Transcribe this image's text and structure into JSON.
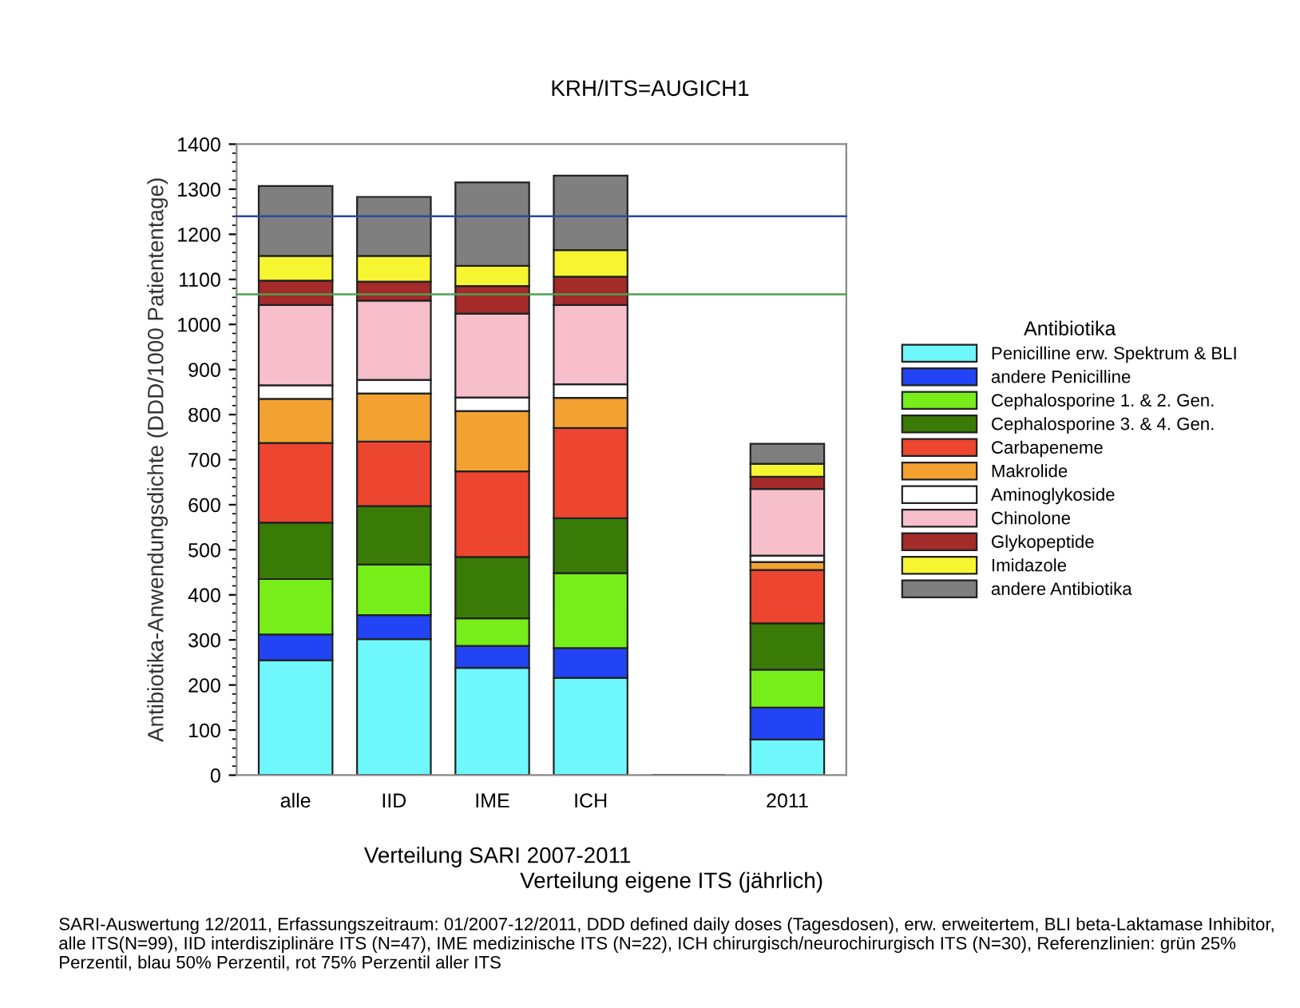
{
  "chart_data": {
    "type": "bar",
    "stacked": true,
    "title": "KRH/ITS=AUGICH1",
    "ylabel": "Antibiotika-Anwendungsdichte (DDD/1000 Patiententage)",
    "legend_title": "Antibiotika",
    "legend": "right",
    "categories": [
      "alle",
      "IID",
      "IME",
      "ICH",
      null,
      "2011"
    ],
    "series": [
      {
        "name": "Penicilline erw. Spektrum & BLI",
        "color": "#6ff8fb",
        "values": [
          255,
          302,
          238,
          216,
          null,
          79
        ]
      },
      {
        "name": "andere Penicilline",
        "color": "#2244f5",
        "values": [
          57,
          53,
          49,
          66,
          null,
          71
        ]
      },
      {
        "name": "Cephalosporine 1. & 2. Gen.",
        "color": "#77ee1a",
        "values": [
          123,
          112,
          61,
          166,
          null,
          84
        ]
      },
      {
        "name": "Cephalosporine 3. & 4. Gen.",
        "color": "#3a7a06",
        "values": [
          125,
          130,
          136,
          122,
          null,
          103
        ]
      },
      {
        "name": "Carbapeneme",
        "color": "#ec4530",
        "values": [
          177,
          143,
          190,
          200,
          null,
          118
        ]
      },
      {
        "name": "Makrolide",
        "color": "#f3a232",
        "values": [
          98,
          107,
          134,
          67,
          null,
          18
        ]
      },
      {
        "name": "Aminoglykoside",
        "color": "#ffffff",
        "values": [
          30,
          30,
          30,
          30,
          null,
          14
        ]
      },
      {
        "name": "Chinolone",
        "color": "#f6bfcb",
        "values": [
          178,
          176,
          186,
          176,
          null,
          148
        ]
      },
      {
        "name": "Glykopeptide",
        "color": "#a52a2a",
        "values": [
          54,
          42,
          61,
          63,
          null,
          27
        ]
      },
      {
        "name": "Imidazole",
        "color": "#f7f531",
        "values": [
          55,
          57,
          45,
          59,
          null,
          29
        ]
      },
      {
        "name": "andere Antibiotika",
        "color": "#7f7f7f",
        "values": [
          155,
          131,
          185,
          165,
          null,
          44
        ]
      }
    ],
    "ylim": [
      0,
      1400
    ],
    "yticks": [
      0,
      100,
      200,
      300,
      400,
      500,
      600,
      700,
      800,
      900,
      1000,
      1100,
      1200,
      1300,
      1400
    ],
    "grid": false,
    "ref_lines": [
      {
        "axis": "y",
        "value": 1240,
        "color": "#2b4a9a"
      },
      {
        "axis": "y",
        "value": 1067,
        "color": "#4fa04f"
      }
    ],
    "annotations": [
      "Verteilung SARI 2007-2011",
      "Verteilung eigene ITS (jährlich)",
      "SARI-Auswertung 12/2011, Erfassungszeitraum: 01/2007-12/2011, DDD defined daily doses (Tagesdosen), erw. erweitertem, BLI beta-Laktamase Inhibitor, alle ITS(N=99), IID interdisziplinäre ITS (N=47), IME medizinische ITS (N=22), ICH chirurgisch/neurochirurgisch ITS (N=30), Referenzlinien: grün 25% Perzentil, blau 50% Perzentil, rot 75% Perzentil aller ITS"
    ]
  }
}
